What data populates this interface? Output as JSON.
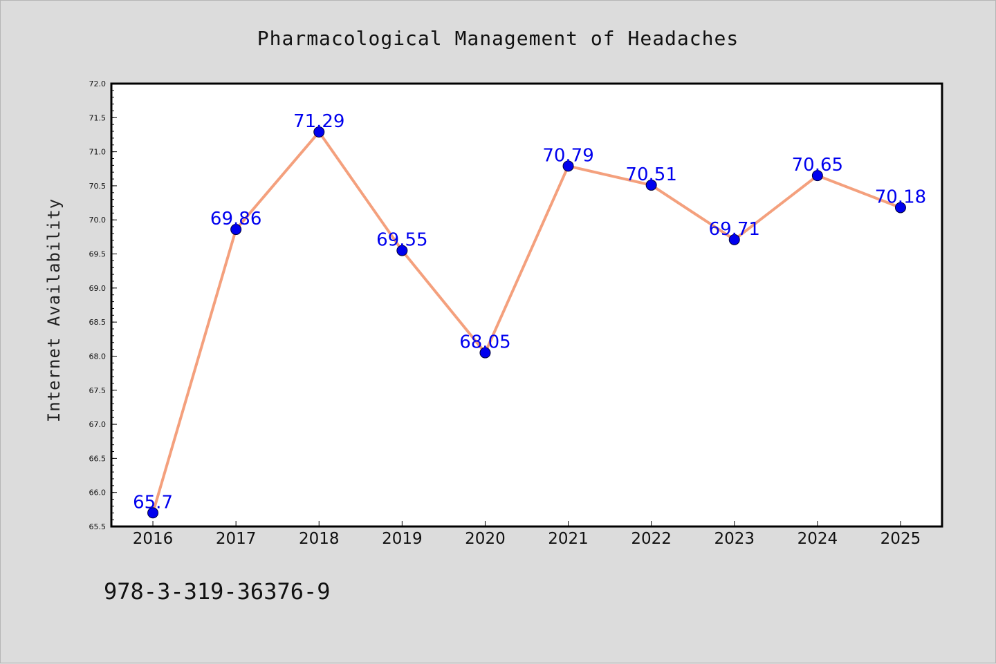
{
  "chart_data": {
    "type": "line",
    "title": "Pharmacological Management of Headaches",
    "xlabel": "",
    "ylabel": "Internet Availability",
    "categories": [
      "2016",
      "2017",
      "2018",
      "2019",
      "2020",
      "2021",
      "2022",
      "2023",
      "2024",
      "2025"
    ],
    "series": [
      {
        "values": [
          65.7,
          69.86,
          71.29,
          69.55,
          68.05,
          70.79,
          70.51,
          69.71,
          70.65,
          70.18
        ],
        "data_labels": [
          "65.7",
          "69.86",
          "71.29",
          "69.55",
          "68.05",
          "70.79",
          "70.51",
          "69.71",
          "70.65",
          "70.18"
        ],
        "line_color": "#f4a07d",
        "marker_color": "#0000ee"
      }
    ],
    "ylim": [
      65.5,
      72.0
    ],
    "yticks": [
      "65.5",
      "66.0",
      "66.5",
      "67.0",
      "67.5",
      "68.0",
      "68.5",
      "69.0",
      "69.5",
      "70.0",
      "70.5",
      "71.0",
      "71.5",
      "72.0"
    ],
    "grid": false,
    "legend": "none",
    "label_color": "#0000ee",
    "background": "#dcdcdc",
    "plot_background": "#ffffff"
  },
  "footer": {
    "isbn": "978-3-319-36376-9"
  }
}
